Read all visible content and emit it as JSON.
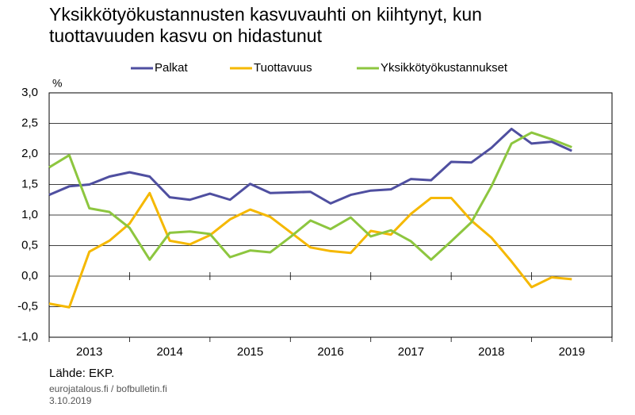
{
  "chart_data": {
    "type": "line",
    "title": [
      "Yksikkötyökustannusten kasvuvauhti on kiihtynyt, kun",
      "tuottavuuden kasvu on hidastunut"
    ],
    "y_unit": "%",
    "x": [
      2013,
      2013.25,
      2013.5,
      2013.75,
      2014,
      2014.25,
      2014.5,
      2014.75,
      2015,
      2015.25,
      2015.5,
      2015.75,
      2016,
      2016.25,
      2016.5,
      2016.75,
      2017,
      2017.25,
      2017.5,
      2017.75,
      2018,
      2018.25,
      2018.5,
      2018.75,
      2019,
      2019.25,
      2019.5
    ],
    "series": [
      {
        "name": "Palkat",
        "color": "#4f4fa0",
        "values": [
          1.33,
          1.47,
          1.5,
          1.63,
          1.7,
          1.63,
          1.29,
          1.25,
          1.35,
          1.25,
          1.51,
          1.36,
          1.37,
          1.38,
          1.19,
          1.33,
          1.4,
          1.42,
          1.59,
          1.57,
          1.87,
          1.86,
          2.1,
          2.41,
          2.17,
          2.2,
          2.05
        ]
      },
      {
        "name": "Tuottavuus",
        "color": "#f5b800",
        "values": [
          -0.45,
          -0.51,
          0.4,
          0.58,
          0.86,
          1.36,
          0.58,
          0.52,
          0.67,
          0.93,
          1.09,
          0.97,
          0.72,
          0.47,
          0.41,
          0.38,
          0.74,
          0.68,
          1.02,
          1.28,
          1.28,
          0.91,
          0.63,
          0.24,
          -0.18,
          -0.02,
          -0.05
        ]
      },
      {
        "name": "Yksikkötyökustannukset",
        "color": "#8dc63f",
        "values": [
          1.78,
          1.98,
          1.11,
          1.05,
          0.79,
          0.27,
          0.71,
          0.73,
          0.69,
          0.31,
          0.42,
          0.39,
          0.64,
          0.91,
          0.77,
          0.96,
          0.65,
          0.75,
          0.57,
          0.27,
          0.57,
          0.88,
          1.47,
          2.17,
          2.35,
          2.24,
          2.11
        ]
      }
    ],
    "xlim": [
      2013,
      2020
    ],
    "xticks": [
      {
        "value": 2013.5,
        "label": "2013"
      },
      {
        "value": 2014.5,
        "label": "2014"
      },
      {
        "value": 2015.5,
        "label": "2015"
      },
      {
        "value": 2016.5,
        "label": "2016"
      },
      {
        "value": 2017.5,
        "label": "2017"
      },
      {
        "value": 2018.5,
        "label": "2018"
      },
      {
        "value": 2019.5,
        "label": "2019"
      }
    ],
    "ylim": [
      -1,
      3
    ],
    "yticks": [
      {
        "value": -1,
        "label": "-1,0"
      },
      {
        "value": -0.5,
        "label": "-0,5"
      },
      {
        "value": 0,
        "label": "0,0"
      },
      {
        "value": 0.5,
        "label": "0,5"
      },
      {
        "value": 1,
        "label": "1,0"
      },
      {
        "value": 1.5,
        "label": "1,5"
      },
      {
        "value": 2,
        "label": "2,0"
      },
      {
        "value": 2.5,
        "label": "2,5"
      },
      {
        "value": 3,
        "label": "3,0"
      }
    ],
    "grid": true,
    "source": "Lähde: EKP.",
    "footer": [
      "eurojatalous.fi  / bofbulletin.fi",
      "3.10.2019"
    ]
  }
}
